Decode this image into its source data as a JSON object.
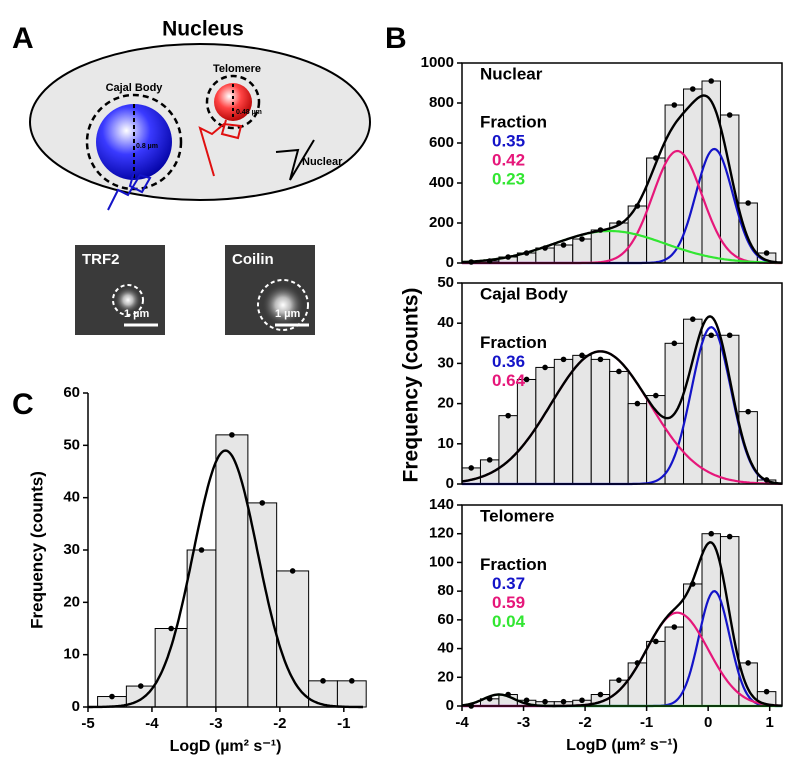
{
  "panel_labels": [
    "A",
    "B",
    "C"
  ],
  "panel_a": {
    "title": "Nucleus",
    "cajal_label": "Cajal Body",
    "cajal_size": "0.8 µm",
    "telomere_label": "Telomere",
    "telomere_size": "0.48 µm",
    "nuclear_label": "Nuclear",
    "image_1_label": "TRF2",
    "image_2_label": "Coilin",
    "scale_1": "1 µm",
    "scale_2": "1 µm"
  },
  "panel_b": {
    "ylabel": "Frequency (counts)"
  },
  "chart_data": [
    {
      "type": "histogram",
      "xlabel": "LogD (µm² s⁻¹)",
      "ylabel": "Frequency (counts)",
      "bins": [
        -4.85,
        -4.4,
        -3.95,
        -3.45,
        -3.0,
        -2.5,
        -2.05,
        -1.55,
        -1.1,
        -0.65
      ],
      "values": [
        2,
        4,
        15,
        30,
        52,
        39,
        26,
        5,
        5
      ],
      "xlim": [
        -5,
        -0.7
      ],
      "ylim": [
        0,
        60
      ],
      "xticks": [
        -5,
        -4,
        -3,
        -2,
        -1
      ],
      "yticks": [
        0,
        10,
        20,
        30,
        40,
        50,
        60
      ],
      "color": "#e6e6e6",
      "fit_color": "#000000",
      "fits": [
        {
          "color": "#000000",
          "amplitude": 49,
          "mean": -2.85,
          "sd": 0.5
        }
      ]
    },
    {
      "type": "histogram",
      "title": "Nuclear",
      "fraction_title": "Fraction",
      "bins": [
        -4,
        -3.7,
        -3.4,
        -3.1,
        -2.8,
        -2.5,
        -2.2,
        -1.9,
        -1.6,
        -1.3,
        -1,
        -0.7,
        -0.4,
        -0.1,
        0.2,
        0.5,
        0.8,
        1.1
      ],
      "values": [
        5,
        10,
        30,
        50,
        75,
        90,
        120,
        165,
        200,
        285,
        525,
        790,
        870,
        910,
        740,
        300,
        50
      ],
      "xlim": [
        -4,
        1.2
      ],
      "ylim": [
        0,
        1000
      ],
      "yticks": [
        0,
        200,
        400,
        600,
        800,
        1000
      ],
      "color": "#e6e6e6",
      "fit_color": "#000000",
      "fits": [
        {
          "label": "0.35",
          "color": "#1414c8",
          "amplitude": 570,
          "mean": 0.1,
          "sd": 0.3
        },
        {
          "label": "0.42",
          "color": "#e6177a",
          "amplitude": 560,
          "mean": -0.5,
          "sd": 0.4
        },
        {
          "label": "0.23",
          "color": "#32e632",
          "amplitude": 160,
          "mean": -1.6,
          "sd": 0.9
        }
      ]
    },
    {
      "type": "histogram",
      "title": "Cajal Body",
      "fraction_title": "Fraction",
      "bins": [
        -4,
        -3.7,
        -3.4,
        -3.1,
        -2.8,
        -2.5,
        -2.2,
        -1.9,
        -1.6,
        -1.3,
        -1,
        -0.7,
        -0.4,
        -0.1,
        0.2,
        0.5,
        0.8,
        1.1
      ],
      "values": [
        4,
        6,
        17,
        26,
        29,
        31,
        32,
        31,
        28,
        20,
        22,
        35,
        41,
        37,
        37,
        18,
        1
      ],
      "xlim": [
        -4,
        1.2
      ],
      "ylim": [
        0,
        50
      ],
      "yticks": [
        0,
        10,
        20,
        30,
        40,
        50
      ],
      "color": "#e6e6e6",
      "fit_color": "#000000",
      "fits": [
        {
          "label": "0.36",
          "color": "#1414c8",
          "amplitude": 39,
          "mean": 0.05,
          "sd": 0.32
        },
        {
          "label": "0.64",
          "color": "#e6177a",
          "amplitude": 33,
          "mean": -1.75,
          "sd": 0.8
        }
      ]
    },
    {
      "type": "histogram",
      "title": "Telomere",
      "fraction_title": "Fraction",
      "xlabel": "LogD (µm² s⁻¹)",
      "bins": [
        -4,
        -3.7,
        -3.4,
        -3.1,
        -2.8,
        -2.5,
        -2.2,
        -1.9,
        -1.6,
        -1.3,
        -1,
        -0.7,
        -0.4,
        -0.1,
        0.2,
        0.5,
        0.8,
        1.1
      ],
      "values": [
        0,
        5,
        8,
        4,
        3,
        3,
        4,
        8,
        18,
        30,
        45,
        55,
        85,
        120,
        118,
        30,
        10
      ],
      "xlim": [
        -4,
        1.2
      ],
      "ylim": [
        0,
        140
      ],
      "xticks": [
        -4,
        -3,
        -2,
        -1,
        0,
        1
      ],
      "yticks": [
        0,
        20,
        40,
        60,
        80,
        100,
        120,
        140
      ],
      "color": "#e6e6e6",
      "fit_color": "#000000",
      "fits": [
        {
          "label": "0.37",
          "color": "#1414c8",
          "amplitude": 80,
          "mean": 0.1,
          "sd": 0.25
        },
        {
          "label": "0.59",
          "color": "#e6177a",
          "amplitude": 65,
          "mean": -0.5,
          "sd": 0.5
        },
        {
          "label": "0.04",
          "color": "#32e632",
          "amplitude": 8,
          "mean": -3.4,
          "sd": 0.25
        }
      ]
    }
  ]
}
